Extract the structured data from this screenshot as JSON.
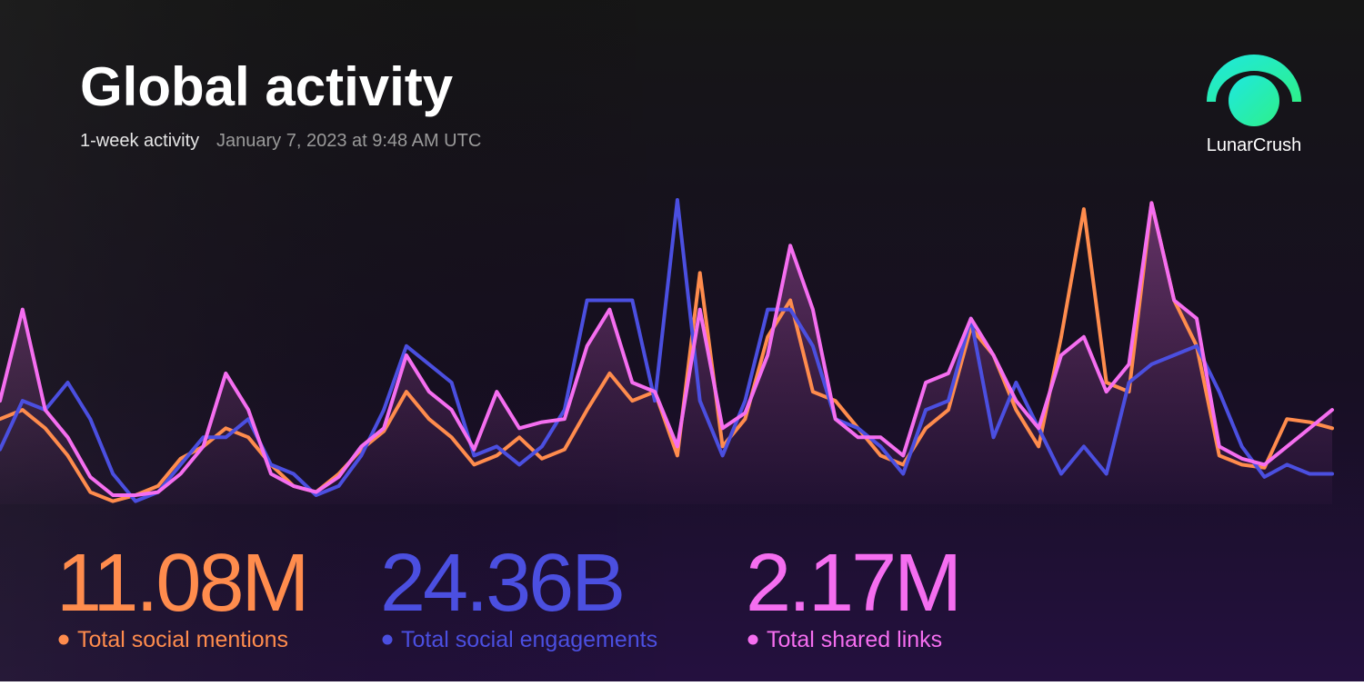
{
  "header": {
    "title": "Global activity",
    "period": "1-week activity",
    "timestamp": "January 7, 2023 at 9:48 AM UTC",
    "brand": "LunarCrush"
  },
  "chart_data": {
    "type": "line",
    "ylim": [
      0,
      100
    ],
    "series": [
      {
        "name": "Total social mentions",
        "total": "11.08M",
        "color": "#ff8c4d",
        "values": [
          28,
          31,
          25,
          16,
          4,
          1,
          3,
          6,
          15,
          19,
          25,
          22,
          13,
          6,
          4,
          10,
          18,
          24,
          37,
          28,
          22,
          13,
          16,
          22,
          15,
          18,
          31,
          43,
          34,
          37,
          16,
          76,
          19,
          28,
          55,
          67,
          37,
          34,
          25,
          16,
          13,
          25,
          31,
          58,
          49,
          31,
          19,
          55,
          97,
          40,
          37,
          99,
          67,
          52,
          16,
          13,
          12,
          28,
          27,
          25
        ]
      },
      {
        "name": "Total social engagements",
        "total": "24.36B",
        "color": "#4b4fe0",
        "values": [
          18,
          34,
          31,
          40,
          28,
          10,
          1,
          4,
          13,
          22,
          22,
          28,
          13,
          10,
          3,
          6,
          16,
          31,
          52,
          46,
          40,
          16,
          19,
          13,
          19,
          31,
          67,
          67,
          67,
          34,
          100,
          34,
          16,
          34,
          64,
          64,
          52,
          28,
          25,
          19,
          10,
          31,
          34,
          61,
          22,
          40,
          25,
          10,
          19,
          10,
          40,
          46,
          49,
          52,
          37,
          19,
          9,
          13,
          10,
          10
        ]
      },
      {
        "name": "Total shared links",
        "total": "2.17M",
        "color": "#f56ef0",
        "values": [
          34,
          64,
          31,
          22,
          9,
          3,
          3,
          4,
          10,
          19,
          43,
          31,
          10,
          6,
          4,
          9,
          19,
          25,
          49,
          37,
          31,
          18,
          37,
          25,
          27,
          28,
          52,
          64,
          40,
          37,
          19,
          64,
          25,
          30,
          49,
          85,
          64,
          28,
          22,
          22,
          16,
          40,
          43,
          61,
          49,
          34,
          25,
          49,
          55,
          37,
          46,
          99,
          67,
          61,
          19,
          15,
          13,
          19,
          25,
          31
        ]
      }
    ]
  }
}
